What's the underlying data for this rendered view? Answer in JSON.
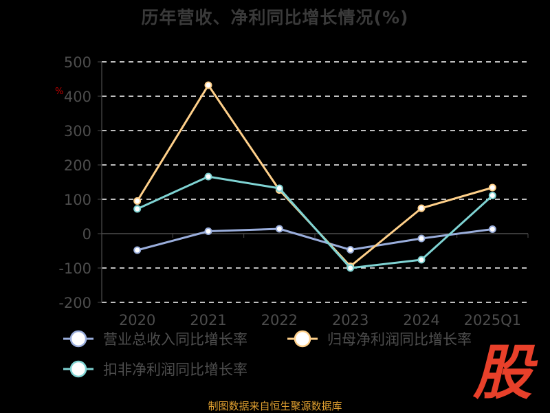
{
  "title": "历年营收、净利同比增长情况(%)",
  "unit_label": "%",
  "source": "制图数据来自恒生聚源数据库",
  "logo_char": "股",
  "colors": {
    "background": "#000000",
    "axis": "#4d4d4d",
    "grid": "#ffffff",
    "source": "#e0a030",
    "logo": "#e8402a"
  },
  "chart_data": {
    "type": "line",
    "title": "历年营收、净利同比增长情况(%)",
    "categories": [
      "2020",
      "2021",
      "2022",
      "2023",
      "2024",
      "2025Q1"
    ],
    "ylim": [
      -200,
      500
    ],
    "yticks": [
      -200,
      -100,
      0,
      100,
      200,
      300,
      400,
      500
    ],
    "ytick_labels": [
      "-200",
      "-100",
      "0",
      "100",
      "200",
      "300",
      "400",
      "500"
    ],
    "grid": "horizontal dashed",
    "legend_placement": "bottom",
    "series": [
      {
        "name": "营业总收入同比增长率",
        "color": "#9aaedc",
        "values": [
          -48,
          7,
          14,
          -47,
          -14,
          13
        ]
      },
      {
        "name": "归母净利润同比增长率",
        "color": "#ffd08a",
        "values": [
          95,
          432,
          127,
          -95,
          74,
          134
        ]
      },
      {
        "name": "扣非净利润同比增长率",
        "color": "#7fd3d3",
        "values": [
          72,
          166,
          132,
          -100,
          -76,
          111
        ]
      }
    ]
  }
}
